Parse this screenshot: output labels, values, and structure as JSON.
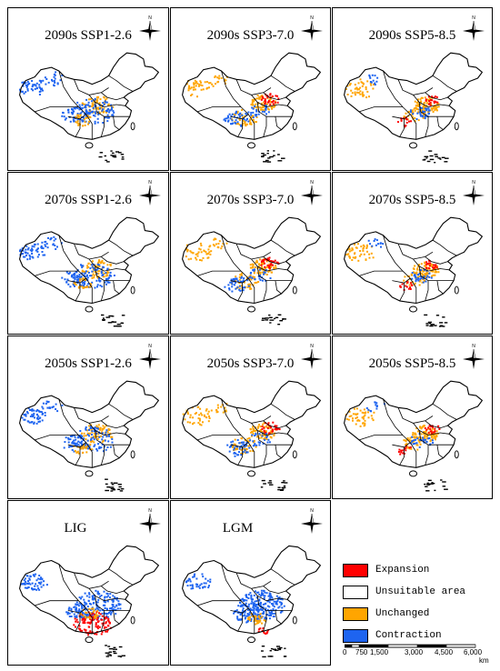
{
  "panels": [
    {
      "title": "2090s SSP1-2.6",
      "scenario": "ssp126"
    },
    {
      "title": "2090s SSP3-7.0",
      "scenario": "ssp370"
    },
    {
      "title": "2090s SSP5-8.5",
      "scenario": "ssp585"
    },
    {
      "title": "2070s SSP1-2.6",
      "scenario": "ssp126"
    },
    {
      "title": "2070s SSP3-7.0",
      "scenario": "ssp370"
    },
    {
      "title": "2070s SSP5-8.5",
      "scenario": "ssp585"
    },
    {
      "title": "2050s SSP1-2.6",
      "scenario": "ssp126"
    },
    {
      "title": "2050s SSP3-7.0",
      "scenario": "ssp370"
    },
    {
      "title": "2050s SSP5-8.5",
      "scenario": "ssp585"
    },
    {
      "title": "LIG",
      "scenario": "lig"
    },
    {
      "title": "LGM",
      "scenario": "lgm"
    }
  ],
  "compass_label": "N",
  "legend": {
    "items": [
      {
        "label": "Expansion",
        "color": "#ff0000"
      },
      {
        "label": "Unsuitable area",
        "color": "#ffffff"
      },
      {
        "label": "Unchanged",
        "color": "#ffa500"
      },
      {
        "label": "Contraction",
        "color": "#1e64f0"
      }
    ]
  },
  "scale": {
    "labels": [
      "0",
      "750",
      "1,500",
      "3,000",
      "4,500",
      "6,000"
    ],
    "unit": "km"
  }
}
